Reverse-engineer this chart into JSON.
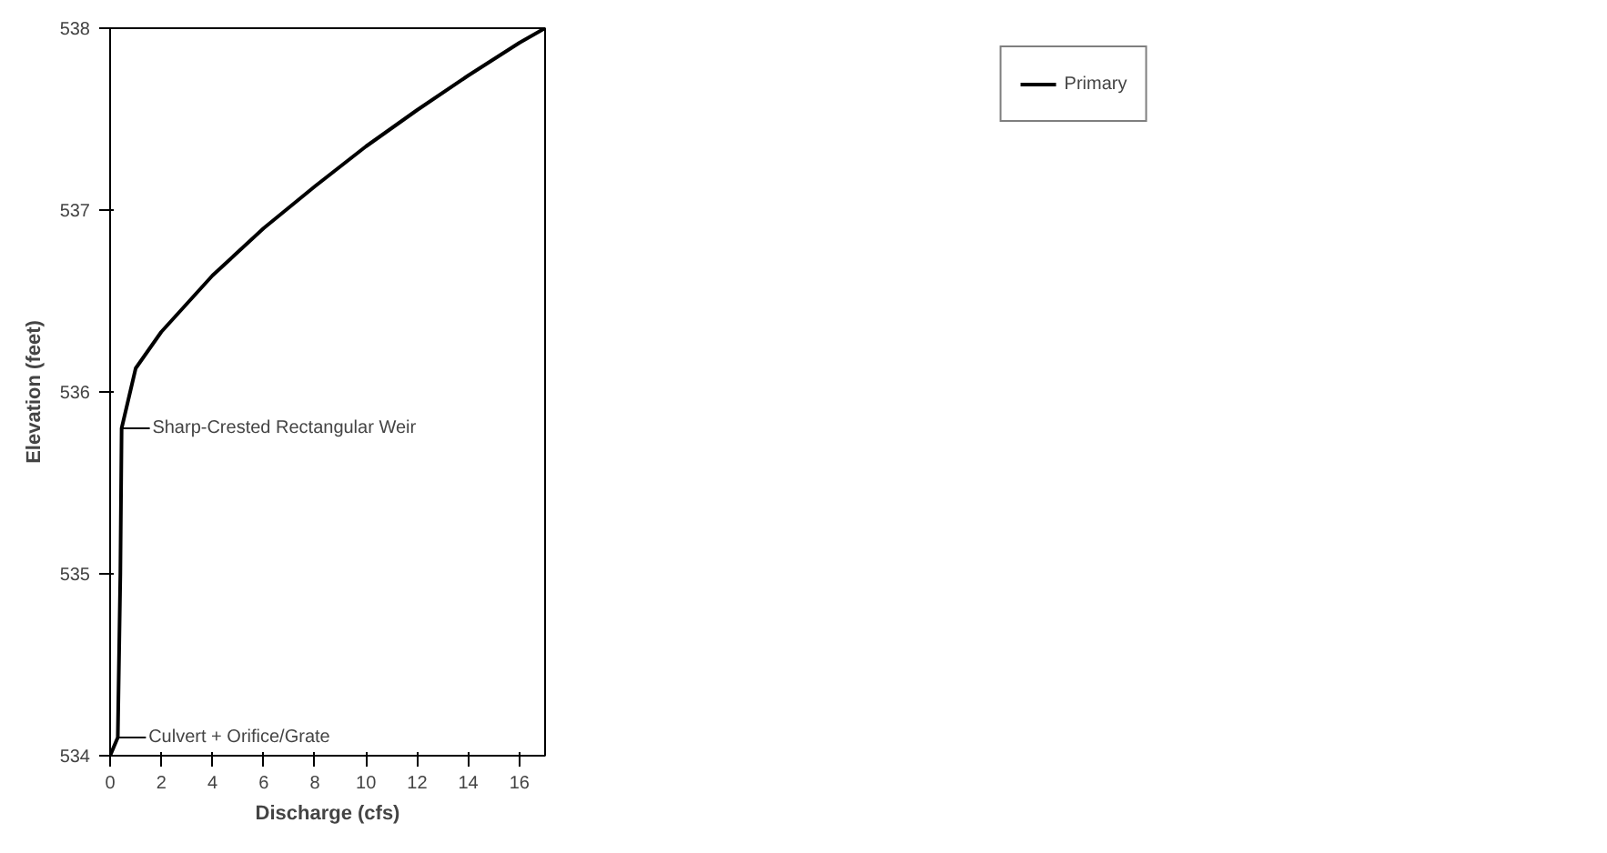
{
  "chart_data": {
    "type": "line",
    "xlabel": "Discharge (cfs)",
    "ylabel": "Elevation (feet)",
    "x": [
      0,
      0.3,
      0.4,
      0.45,
      1,
      2,
      4,
      6,
      8,
      10,
      12,
      14,
      16,
      17
    ],
    "series": [
      {
        "name": "Primary",
        "color": "#000000",
        "values": [
          534,
          534.1,
          535,
          535.8,
          536.13,
          536.33,
          536.64,
          536.9,
          537.13,
          537.35,
          537.55,
          537.74,
          537.92,
          538
        ]
      }
    ],
    "xlim": [
      0,
      17
    ],
    "ylim": [
      534,
      538
    ],
    "xticks": [
      0,
      2,
      4,
      6,
      8,
      10,
      12,
      14,
      16
    ],
    "yticks": [
      534,
      535,
      536,
      537,
      538
    ],
    "annotations": [
      {
        "text": "Sharp-Crested Rectangular Weir",
        "x": 0.45,
        "y": 535.8
      },
      {
        "text": "Culvert + Orifice/Grate",
        "x": 0.3,
        "y": 534.1
      }
    ],
    "grid": false,
    "legend": "top right",
    "line_style": "solid",
    "marker": "none"
  }
}
